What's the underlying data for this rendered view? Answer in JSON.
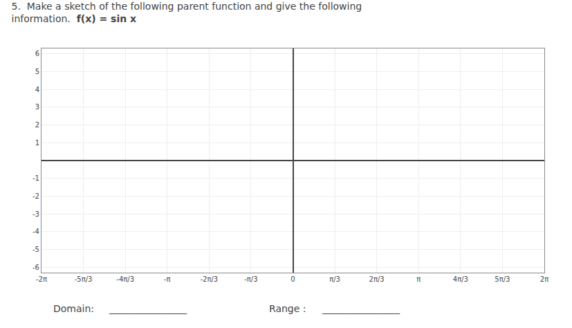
{
  "chart_data": {
    "type": "line",
    "title": "5.  Make a sketch of the following parent function and give the following",
    "subtitle": [
      "information.  ",
      "f(x) = sin x"
    ],
    "annotations": [
      "Domain:",
      "________________",
      "Range :",
      "________________"
    ],
    "series": [],
    "xlim": [
      -6.283185307,
      6.283185307
    ],
    "xticks": [
      {
        "value": -6.283185307,
        "label": "-2π"
      },
      {
        "value": -5.235987756,
        "label": "-5π/3"
      },
      {
        "value": -4.188790205,
        "label": "-4π/3"
      },
      {
        "value": -3.141592654,
        "label": "-π"
      },
      {
        "value": -2.094395102,
        "label": "-2π/3"
      },
      {
        "value": -1.047197551,
        "label": "-π/3"
      },
      0,
      {
        "value": 1.047197551,
        "label": "π/3"
      },
      {
        "value": 2.094395102,
        "label": "2π/3"
      },
      {
        "value": 3.141592654,
        "label": "π"
      },
      {
        "value": 4.188790205,
        "label": "4π/3"
      },
      {
        "value": 5.235987756,
        "label": "5π/3"
      },
      {
        "value": 6.283185307,
        "label": "2π"
      }
    ],
    "ylim": [
      -6.3,
      6.3
    ],
    "yticks": [
      -6,
      -5,
      -4,
      -3,
      -2,
      -1,
      1,
      2,
      3,
      4,
      5,
      6
    ],
    "grid": true
  }
}
